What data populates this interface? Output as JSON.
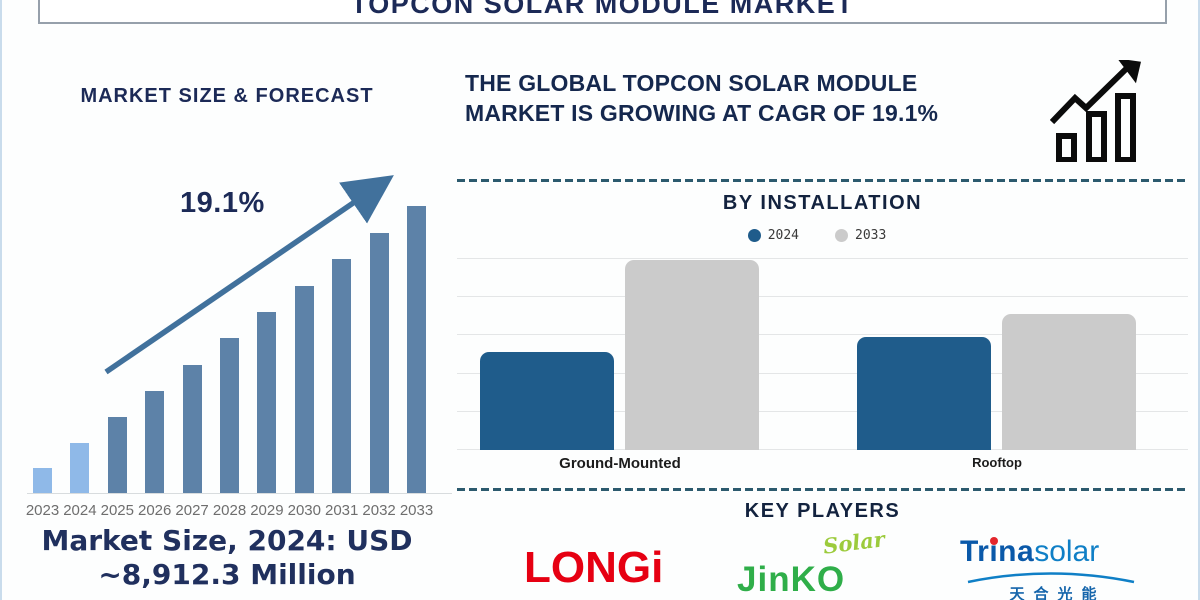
{
  "header": {
    "title": "TOPCON SOLAR MODULE MARKET"
  },
  "left_panel": {
    "section_title": "MARKET SIZE & FORECAST",
    "cagr_annotation": "19.1%",
    "market_size_line1": "Market Size, 2024: USD",
    "market_size_line2": "~8,912.3 Million"
  },
  "right_panel": {
    "headline_line1": "THE GLOBAL TOPCON SOLAR MODULE",
    "headline_line2": "MARKET IS GROWING AT CAGR OF 19.1%",
    "installation_title": "BY INSTALLATION",
    "key_players_title": "KEY PLAYERS"
  },
  "key_players": {
    "longi": {
      "text": "LONGi"
    },
    "jinko": {
      "main": "JinKO",
      "script": "Solar"
    },
    "trina": {
      "bold": "Trina",
      "light": "solar",
      "cjk": "天合光能"
    }
  },
  "icons": {
    "growth_trend": "outlined-bars-with-rising-arrow",
    "trend_arrow": "diagonal-up-arrow",
    "trina_swoosh": "curved-underline-arc",
    "legend_dots": "filled-circles"
  },
  "chart_data": [
    {
      "type": "bar",
      "title": "MARKET SIZE & FORECAST",
      "categories": [
        "2023",
        "2024",
        "2025",
        "2026",
        "2027",
        "2028",
        "2029",
        "2030",
        "2031",
        "2032",
        "2033"
      ],
      "values": [
        8.7,
        17.4,
        26.5,
        35.5,
        44.6,
        54.0,
        63.1,
        72.1,
        81.5,
        90.6,
        100
      ],
      "values_note": "relative bar heights in % of 2033 bar; chart is schematic, no numeric axis shown",
      "highlight_categories": [
        "2023",
        "2024"
      ],
      "annotation": {
        "text": "19.1%",
        "shape": "straight-up-right-arrow"
      },
      "xlabel": "",
      "ylabel": "",
      "grid": false,
      "legend": false
    },
    {
      "type": "bar",
      "title": "BY INSTALLATION",
      "categories": [
        "Ground-Mounted",
        "Rooftop"
      ],
      "series": [
        {
          "name": "2024",
          "values": [
            51,
            59
          ],
          "color": "#1f5c8b"
        },
        {
          "name": "2033",
          "values": [
            99,
            71
          ],
          "color": "#cbcbcb"
        }
      ],
      "values_note": "relative bar heights in % of top gridline; no numeric axis shown",
      "ylim": [
        0,
        100
      ],
      "grid": true,
      "legend_position": "top-center"
    }
  ],
  "colors": {
    "navy_text": "#1c2a57",
    "forecast_bar": "#5d82a8",
    "forecast_bar_highlight": "#8fb9e8",
    "trend_arrow": "#41719c",
    "installation_2024": "#1f5c8b",
    "installation_2033": "#cbcbcb",
    "dashed_divider": "#2c5a6e",
    "longi_red": "#e60012",
    "jinko_green": "#2fae49",
    "jinko_script_green": "#9ccb3c",
    "trina_blue": "#0a59a9",
    "trina_light_blue": "#0f7fc6",
    "trina_dot_red": "#e3262c"
  }
}
